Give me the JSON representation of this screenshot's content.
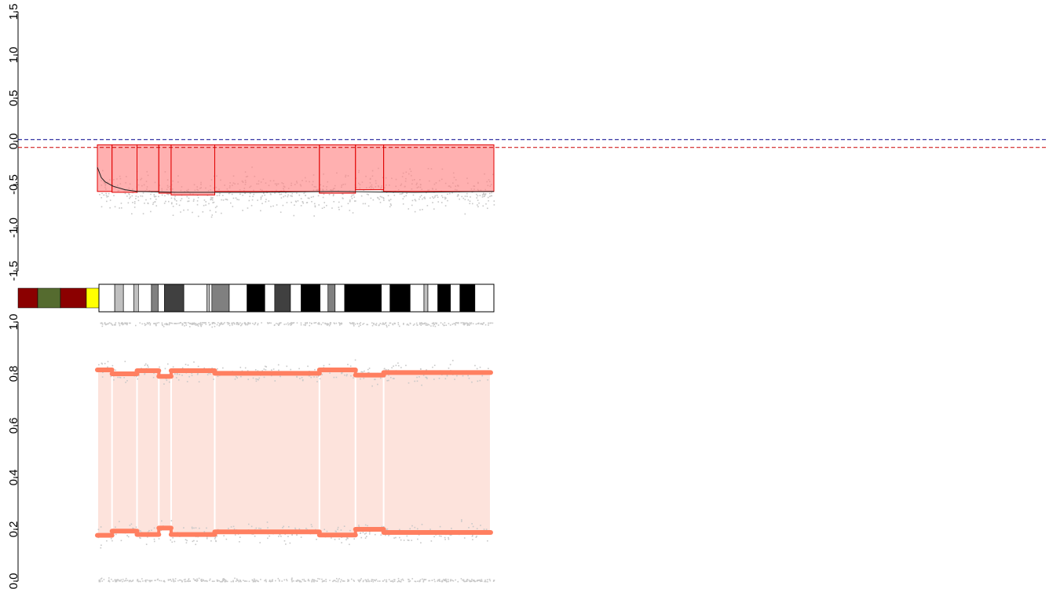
{
  "chart_data": [
    {
      "type": "scatter",
      "panel": "log-ratio",
      "ylim": [
        -1.5,
        1.5
      ],
      "yticks": [
        "-1.5",
        "-1.0",
        "-0.5",
        "0.0",
        "0.5",
        "1.0",
        "1.5"
      ],
      "xlabel": "",
      "ylabel": "",
      "grid": false,
      "reference_lines": [
        {
          "y": 0.02,
          "color": "#00008b",
          "style": "dashed"
        },
        {
          "y": -0.07,
          "color": "#cc0000",
          "style": "dashed"
        }
      ],
      "segment_color": "#ff8080",
      "point_color": "#c8c8c8",
      "segments": [
        {
          "x_start": 0.0,
          "x_end": 0.037,
          "value": -0.58
        },
        {
          "x_start": 0.037,
          "x_end": 0.1,
          "value": -0.59
        },
        {
          "x_start": 0.1,
          "x_end": 0.155,
          "value": -0.58
        },
        {
          "x_start": 0.155,
          "x_end": 0.186,
          "value": -0.6
        },
        {
          "x_start": 0.186,
          "x_end": 0.296,
          "value": -0.62
        },
        {
          "x_start": 0.296,
          "x_end": 0.56,
          "value": -0.58
        },
        {
          "x_start": 0.56,
          "x_end": 0.651,
          "value": -0.6
        },
        {
          "x_start": 0.651,
          "x_end": 0.722,
          "value": -0.56
        },
        {
          "x_start": 0.722,
          "x_end": 1.0,
          "value": -0.58
        }
      ],
      "trend_line": [
        [
          0.0,
          -0.3
        ],
        [
          0.01,
          -0.42
        ],
        [
          0.02,
          -0.47
        ],
        [
          0.04,
          -0.52
        ],
        [
          0.07,
          -0.56
        ],
        [
          0.1,
          -0.58
        ],
        [
          0.2,
          -0.59
        ],
        [
          0.4,
          -0.59
        ],
        [
          0.6,
          -0.58
        ],
        [
          0.8,
          -0.59
        ],
        [
          1.0,
          -0.58
        ]
      ]
    },
    {
      "type": "heatmap",
      "panel": "ideogram",
      "legend_colors": [
        "#8b0000",
        "#556b2f",
        "#8b0000",
        "#ffff00"
      ],
      "bands": [
        {
          "x0": 0.0,
          "x1": 0.04,
          "color": "#ffffff"
        },
        {
          "x0": 0.04,
          "x1": 0.062,
          "color": "#c0c0c0"
        },
        {
          "x0": 0.062,
          "x1": 0.088,
          "color": "#ffffff"
        },
        {
          "x0": 0.088,
          "x1": 0.1,
          "color": "#c0c0c0"
        },
        {
          "x0": 0.1,
          "x1": 0.133,
          "color": "#ffffff"
        },
        {
          "x0": 0.133,
          "x1": 0.15,
          "color": "#808080"
        },
        {
          "x0": 0.15,
          "x1": 0.166,
          "color": "#ffffff"
        },
        {
          "x0": 0.166,
          "x1": 0.215,
          "color": "#404040"
        },
        {
          "x0": 0.215,
          "x1": 0.273,
          "color": "#ffffff"
        },
        {
          "x0": 0.273,
          "x1": 0.28,
          "color": "#c0c0c0"
        },
        {
          "x0": 0.28,
          "x1": 0.286,
          "color": "#ffffff"
        },
        {
          "x0": 0.286,
          "x1": 0.33,
          "color": "#808080"
        },
        {
          "x0": 0.33,
          "x1": 0.375,
          "color": "#ffffff"
        },
        {
          "x0": 0.375,
          "x1": 0.42,
          "color": "#000000"
        },
        {
          "x0": 0.42,
          "x1": 0.445,
          "color": "#ffffff"
        },
        {
          "x0": 0.445,
          "x1": 0.485,
          "color": "#404040"
        },
        {
          "x0": 0.485,
          "x1": 0.512,
          "color": "#ffffff"
        },
        {
          "x0": 0.512,
          "x1": 0.56,
          "color": "#000000"
        },
        {
          "x0": 0.56,
          "x1": 0.58,
          "color": "#ffffff"
        },
        {
          "x0": 0.58,
          "x1": 0.598,
          "color": "#808080"
        },
        {
          "x0": 0.598,
          "x1": 0.622,
          "color": "#ffffff"
        },
        {
          "x0": 0.622,
          "x1": 0.715,
          "color": "#000000"
        },
        {
          "x0": 0.715,
          "x1": 0.737,
          "color": "#ffffff"
        },
        {
          "x0": 0.737,
          "x1": 0.788,
          "color": "#000000"
        },
        {
          "x0": 0.788,
          "x1": 0.823,
          "color": "#ffffff"
        },
        {
          "x0": 0.823,
          "x1": 0.833,
          "color": "#c0c0c0"
        },
        {
          "x0": 0.833,
          "x1": 0.858,
          "color": "#ffffff"
        },
        {
          "x0": 0.858,
          "x1": 0.89,
          "color": "#000000"
        },
        {
          "x0": 0.89,
          "x1": 0.914,
          "color": "#ffffff"
        },
        {
          "x0": 0.914,
          "x1": 0.952,
          "color": "#000000"
        },
        {
          "x0": 0.952,
          "x1": 1.0,
          "color": "#ffffff"
        }
      ]
    },
    {
      "type": "scatter",
      "panel": "b-allele-frequency",
      "ylim": [
        0.0,
        1.0
      ],
      "yticks": [
        "0.0",
        "0.2",
        "0.4",
        "0.6",
        "0.8",
        "1.0"
      ],
      "xlabel": "",
      "ylabel": "",
      "grid": false,
      "band_color": "#fde3dc",
      "line_color": "#ff7f60",
      "point_color": "#c8c8c8",
      "segments": [
        {
          "x_start": 0.0,
          "x_end": 0.037,
          "upper": 0.815,
          "lower": 0.177
        },
        {
          "x_start": 0.037,
          "x_end": 0.1,
          "upper": 0.8,
          "lower": 0.193
        },
        {
          "x_start": 0.1,
          "x_end": 0.155,
          "upper": 0.812,
          "lower": 0.18
        },
        {
          "x_start": 0.155,
          "x_end": 0.186,
          "upper": 0.79,
          "lower": 0.205
        },
        {
          "x_start": 0.186,
          "x_end": 0.296,
          "upper": 0.812,
          "lower": 0.18
        },
        {
          "x_start": 0.296,
          "x_end": 0.56,
          "upper": 0.802,
          "lower": 0.19
        },
        {
          "x_start": 0.56,
          "x_end": 0.651,
          "upper": 0.815,
          "lower": 0.178
        },
        {
          "x_start": 0.651,
          "x_end": 0.722,
          "upper": 0.795,
          "lower": 0.2
        },
        {
          "x_start": 0.722,
          "x_end": 0.992,
          "upper": 0.805,
          "lower": 0.188
        }
      ],
      "homozygous_levels": [
        0.0,
        1.0
      ]
    }
  ]
}
